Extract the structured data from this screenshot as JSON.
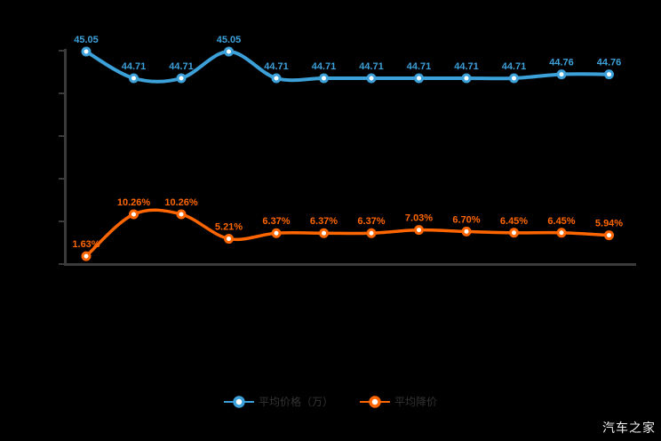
{
  "page": {
    "background": "#000000"
  },
  "watermark": "汽车之家",
  "legend": {
    "items": [
      {
        "label": "平均价格（万）",
        "color": "#3ca0d9"
      },
      {
        "label": "平均降价",
        "color": "#ff6600"
      }
    ]
  },
  "chart_data": {
    "type": "line",
    "title": "",
    "point_count": 12,
    "series": [
      {
        "name": "平均价格（万）",
        "color": "#3ca0d9",
        "unit": "万",
        "values": [
          45.05,
          44.71,
          44.71,
          45.05,
          44.71,
          44.71,
          44.71,
          44.71,
          44.71,
          44.71,
          44.76,
          44.76
        ],
        "labels": [
          "45.05",
          "44.71",
          "44.71",
          "45.05",
          "44.71",
          "44.71",
          "44.71",
          "44.71",
          "44.71",
          "44.71",
          "44.76",
          "44.76"
        ]
      },
      {
        "name": "平均降价",
        "color": "#ff6600",
        "unit": "%",
        "values": [
          1.63,
          10.26,
          10.26,
          5.21,
          6.37,
          6.37,
          6.37,
          7.03,
          6.7,
          6.45,
          6.45,
          5.94
        ],
        "labels": [
          "1.63%",
          "10.26%",
          "10.26%",
          "5.21%",
          "6.37%",
          "6.37%",
          "6.37%",
          "7.03%",
          "6.70%",
          "6.45%",
          "6.45%",
          "5.94%"
        ]
      }
    ],
    "x_axis": {
      "tick_labels_visible": false
    },
    "y_axis": {
      "tick_count": 6,
      "tick_labels_visible": false
    },
    "grid": false,
    "legend_position": "bottom",
    "axis_color": "#3a3a3a"
  }
}
